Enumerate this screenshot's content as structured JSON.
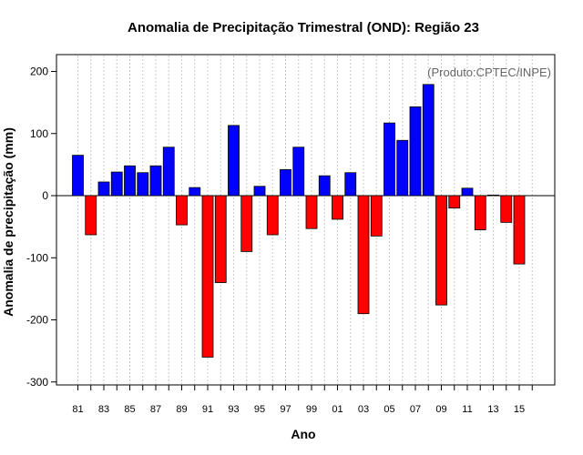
{
  "chart_data": {
    "type": "bar",
    "title": "Anomalia de Precipitação Trimestral (OND): Região 23",
    "xlabel": "Ano",
    "ylabel": "Anomalia de precipitação (mm)",
    "credit": "(Produto:CPTEC/INPE)",
    "ylim": [
      -310,
      230
    ],
    "yticks": [
      200,
      100,
      0,
      -100,
      -200,
      -300
    ],
    "ytick_labels": [
      "200",
      "100",
      "0",
      "-100",
      "-200",
      "-300"
    ],
    "categories": [
      "1981",
      "1982",
      "1983",
      "1984",
      "1985",
      "1986",
      "1987",
      "1988",
      "1989",
      "1990",
      "1991",
      "1992",
      "1993",
      "1994",
      "1995",
      "1996",
      "1997",
      "1998",
      "1999",
      "2000",
      "2001",
      "2002",
      "2003",
      "2004",
      "2005",
      "2006",
      "2007",
      "2008",
      "2009",
      "2010",
      "2011",
      "2012",
      "2013",
      "2014",
      "2015",
      "2016"
    ],
    "xtick_labels": [
      "81",
      "",
      "83",
      "",
      "85",
      "",
      "87",
      "",
      "89",
      "",
      "91",
      "",
      "93",
      "",
      "95",
      "",
      "97",
      "",
      "99",
      "",
      "01",
      "",
      "03",
      "",
      "05",
      "",
      "07",
      "",
      "09",
      "",
      "11",
      "",
      "13",
      "",
      "15",
      ""
    ],
    "values": [
      65,
      -63,
      22,
      38,
      48,
      37,
      48,
      78,
      -47,
      13,
      -260,
      -140,
      113,
      -90,
      15,
      -63,
      42,
      78,
      -53,
      32,
      -38,
      37,
      -190,
      -65,
      117,
      89,
      143,
      179,
      -176,
      -20,
      12,
      -55,
      1,
      -43,
      -110,
      null
    ],
    "colors": {
      "positive": "#0000ff",
      "negative": "#ff0000",
      "grid": "#c8c8c8",
      "credit": "#666666"
    }
  }
}
